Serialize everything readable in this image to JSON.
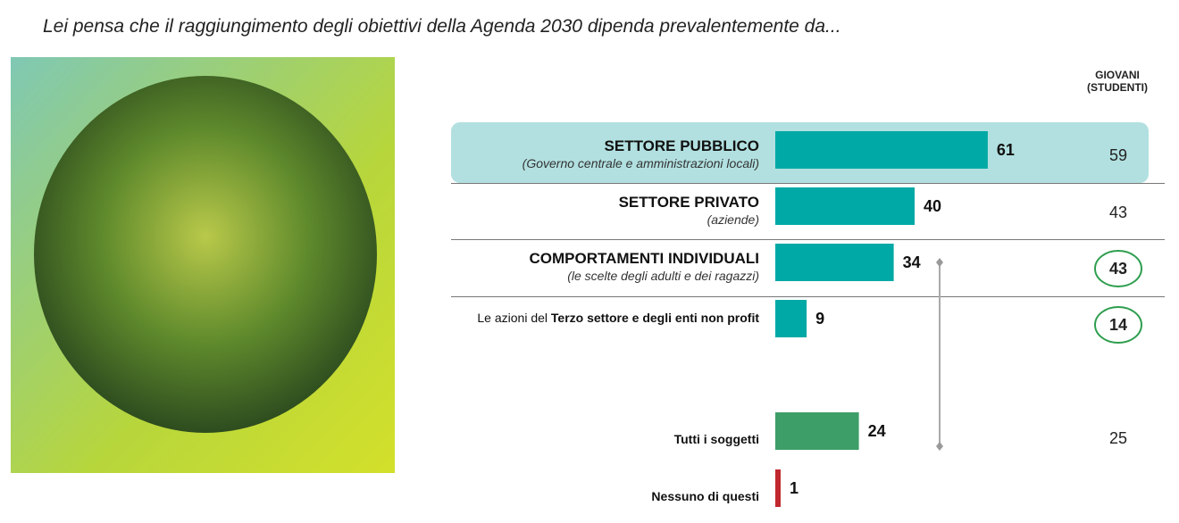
{
  "chart_data": {
    "type": "bar",
    "title": "Lei pensa che il raggiungimento degli obiettivi della Agenda 2030 dipenda prevalentemente da...",
    "categories": [
      "SETTORE PUBBLICO",
      "SETTORE PRIVATO",
      "COMPORTAMENTI INDIVIDUALI",
      "Terzo settore e degli enti non profit",
      "Tutti i soggetti",
      "Nessuno di questi"
    ],
    "category_prefixes": [
      null,
      null,
      null,
      "Le azioni del",
      null,
      null
    ],
    "subtitles": [
      "(Governo centrale e amministrazioni locali)",
      "(aziende)",
      "(le scelte degli adulti e dei ragazzi)",
      null,
      null,
      null
    ],
    "values": [
      61,
      40,
      34,
      9,
      24,
      1
    ],
    "colors": [
      "#00a9a5",
      "#00a9a5",
      "#00a9a5",
      "#00a9a5",
      "#3d9e68",
      "#c0282d"
    ],
    "comparison": {
      "name": "GIOVANI (STUDENTI)",
      "values": [
        59,
        43,
        43,
        14,
        25,
        null
      ],
      "highlighted": [
        false,
        false,
        true,
        true,
        false,
        false
      ],
      "highlight_color": "#2e9e4f"
    }
  }
}
